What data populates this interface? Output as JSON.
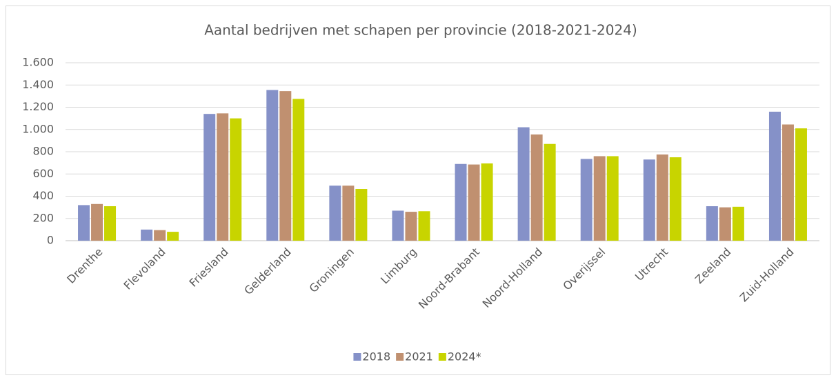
{
  "chart_data": {
    "type": "bar",
    "title": "Aantal bedrijven met schapen per provincie (2018-2021-2024)",
    "categories": [
      "Drenthe",
      "Flevoland",
      "Friesland",
      "Gelderland",
      "Groningen",
      "Limburg",
      "Noord-Brabant",
      "Noord-Holland",
      "Overijssel",
      "Utrecht",
      "Zeeland",
      "Zuid-Holland"
    ],
    "series": [
      {
        "name": "2018",
        "color": "#8591c8",
        "values": [
          320,
          100,
          1140,
          1355,
          495,
          270,
          690,
          1020,
          735,
          730,
          310,
          1160
        ]
      },
      {
        "name": "2021",
        "color": "#c09070",
        "values": [
          330,
          95,
          1145,
          1345,
          495,
          260,
          685,
          955,
          760,
          775,
          300,
          1045
        ]
      },
      {
        "name": "2024*",
        "color": "#c8d400",
        "values": [
          310,
          80,
          1100,
          1275,
          465,
          265,
          695,
          870,
          760,
          750,
          305,
          1010
        ]
      }
    ],
    "ylim": [
      0,
      1600
    ],
    "yticks": [
      0,
      200,
      400,
      600,
      800,
      {
        "value": 1000,
        "label": "1.000"
      },
      {
        "value": 1200,
        "label": "1.200"
      },
      {
        "value": 1400,
        "label": "1.400"
      },
      {
        "value": 1600,
        "label": "1.600"
      }
    ],
    "grid": true,
    "legend": "bottom"
  }
}
